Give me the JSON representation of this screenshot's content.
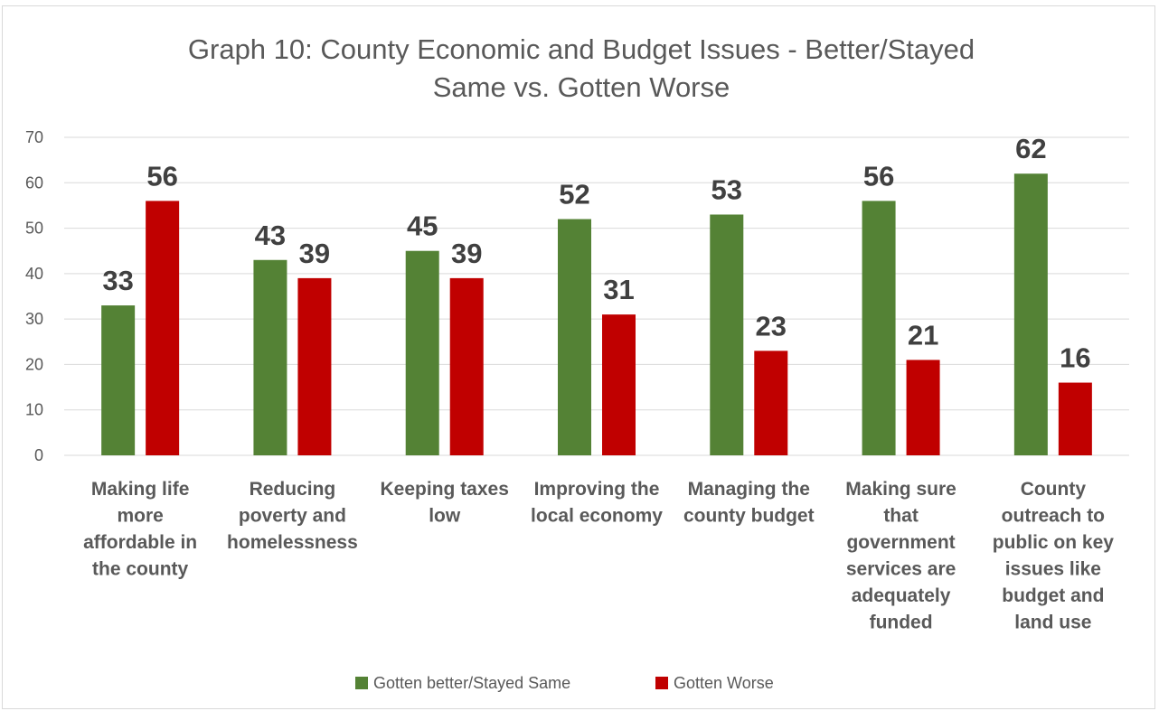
{
  "chart_data": {
    "type": "bar",
    "title_lines": [
      "Graph 10: County Economic and Budget Issues - Better/Stayed",
      "Same vs. Gotten Worse"
    ],
    "categories": [
      [
        "Making life",
        "more",
        "affordable in",
        "the county"
      ],
      [
        "Reducing",
        "poverty and",
        "homelessness"
      ],
      [
        "Keeping taxes",
        "low"
      ],
      [
        "Improving the",
        "local economy"
      ],
      [
        "Managing the",
        "county budget"
      ],
      [
        "Making sure",
        "that",
        "government",
        "services are",
        "adequately",
        "funded"
      ],
      [
        "County",
        "outreach to",
        "public on key",
        "issues like",
        "budget and",
        "land use"
      ]
    ],
    "series": [
      {
        "name": "Gotten better/Stayed Same",
        "color": "#548235",
        "values": [
          33,
          43,
          45,
          52,
          53,
          56,
          62
        ]
      },
      {
        "name": "Gotten Worse",
        "color": "#c00000",
        "values": [
          56,
          39,
          39,
          31,
          23,
          21,
          16
        ]
      }
    ],
    "ylim": [
      0,
      70
    ],
    "yticks": [
      0,
      10,
      20,
      30,
      40,
      50,
      60,
      70
    ],
    "grid": true,
    "legend": "bottom",
    "data_labels": true
  }
}
